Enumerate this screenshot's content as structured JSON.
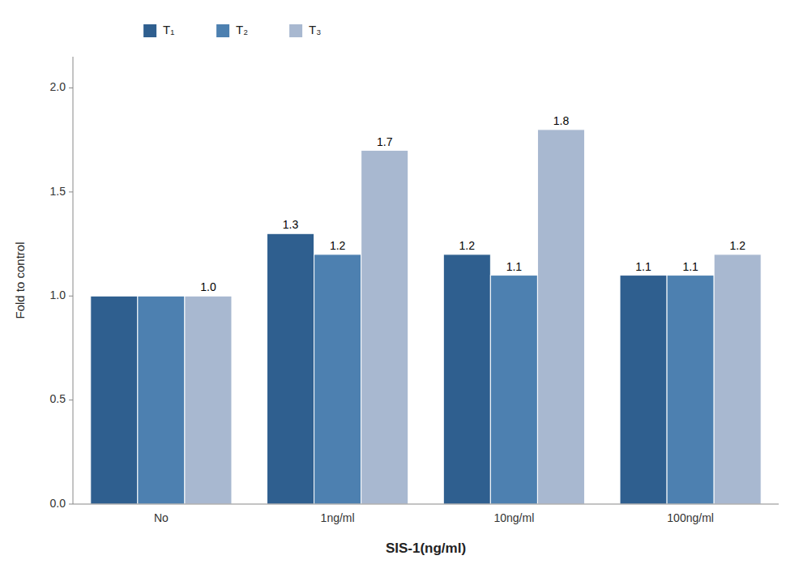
{
  "chart_data": {
    "type": "bar",
    "categories": [
      "No",
      "1ng/ml",
      "10ng/ml",
      "100ng/ml"
    ],
    "series": [
      {
        "name": "T₁",
        "color": "#2F5F8F",
        "values": [
          1.0,
          1.3,
          1.2,
          1.1
        ],
        "value_labels": [
          null,
          "1.3",
          "1.2",
          "1.1"
        ]
      },
      {
        "name": "T₂",
        "color": "#4D80B0",
        "values": [
          1.0,
          1.2,
          1.1,
          1.1
        ],
        "value_labels": [
          null,
          "1.2",
          "1.1",
          "1.1"
        ]
      },
      {
        "name": "T₃",
        "color": "#A8B8D0",
        "values": [
          1.0,
          1.7,
          1.8,
          1.2
        ],
        "value_labels": [
          "1.0",
          "1.7",
          "1.8",
          "1.2"
        ]
      }
    ],
    "xlabel": "SIS-1(ng/ml)",
    "ylabel": "Fold to control",
    "ylim": [
      0.0,
      2.15
    ],
    "yticks": [
      {
        "value": 0.0,
        "label": "0.0"
      },
      0.5,
      {
        "value": 1.0,
        "label": "1.0"
      },
      1.5,
      {
        "value": 2.0,
        "label": "2.0"
      }
    ],
    "data_labels": true,
    "legend": "upper left",
    "grid": false
  }
}
